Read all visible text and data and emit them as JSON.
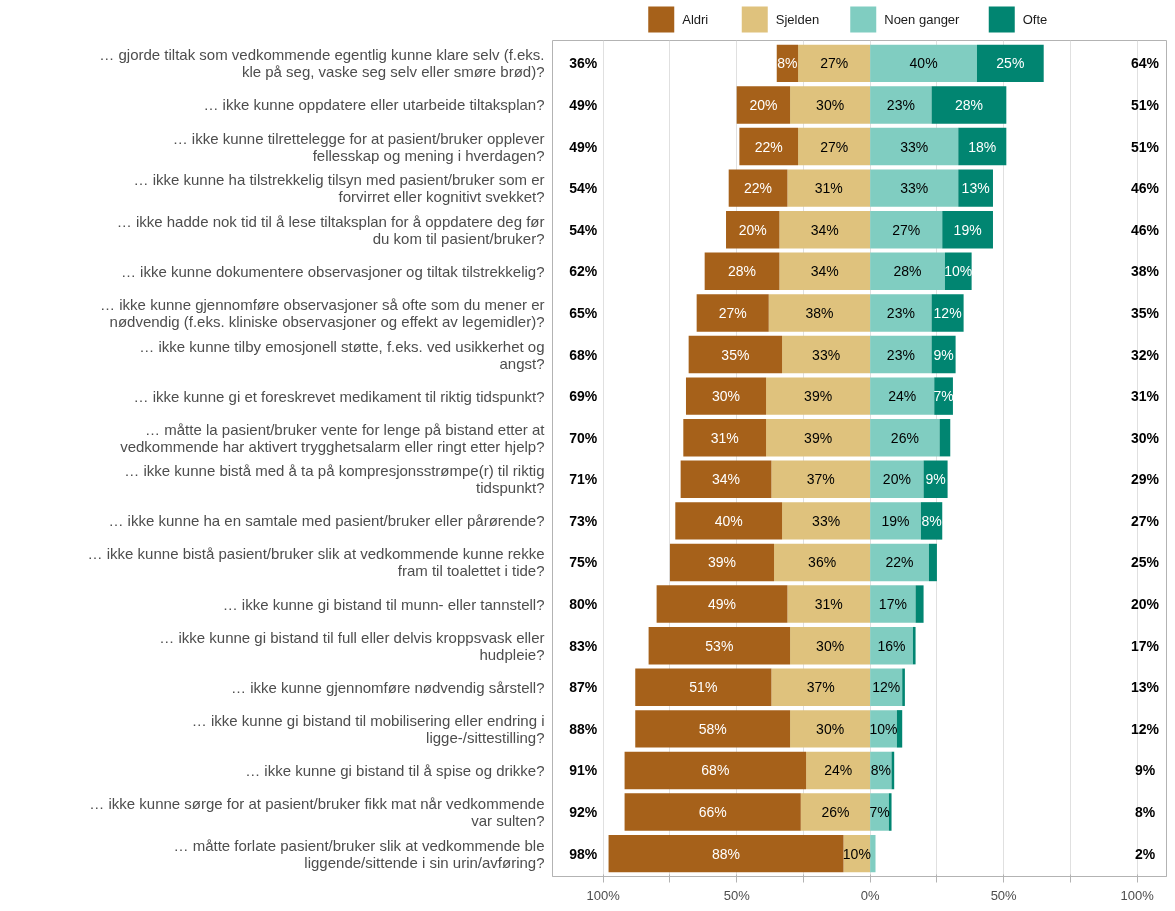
{
  "chart_data": {
    "type": "bar",
    "orientation": "horizontal",
    "categories": [
      "… gjorde tiltak som vedkommende egentlig kunne klare selv (f.eks.\nkle på seg, vaske seg selv eller smøre brød)?",
      "… ikke kunne oppdatere eller utarbeide tiltaksplan?",
      "… ikke kunne tilrettelegge for at pasient/bruker opplever\nfellesskap og mening i hverdagen?",
      "… ikke kunne ha tilstrekkelig tilsyn med pasient/bruker som er\nforvirret eller kognitivt svekket?",
      "… ikke hadde nok tid til å lese tiltaksplan for å oppdatere deg før\ndu kom til pasient/bruker?",
      "… ikke kunne dokumentere observasjoner og tiltak tilstrekkelig?",
      "… ikke kunne gjennomføre observasjoner så ofte som du mener er\nnødvendig (f.eks. kliniske observasjoner og effekt av legemidler)?",
      "… ikke kunne tilby emosjonell støtte, f.eks. ved usikkerhet og\nangst?",
      "… ikke kunne gi et foreskrevet medikament til riktig tidspunkt?",
      "… måtte la pasient/bruker vente for lenge på bistand etter at\nvedkommende har aktivert trygghetsalarm eller ringt etter hjelp?",
      "… ikke kunne bistå med å ta på kompresjonsstrømpe(r) til riktig\ntidspunkt?",
      "… ikke kunne ha en samtale med pasient/bruker eller pårørende?",
      "… ikke kunne bistå pasient/bruker slik at vedkommende kunne rekke\nfram til toalettet i tide?",
      "… ikke kunne gi bistand til munn- eller tannstell?",
      "… ikke kunne gi bistand til full eller delvis kroppsvask eller\nhudpleie?",
      "… ikke kunne gjennomføre nødvendig sårstell?",
      "… ikke kunne gi bistand til mobilisering eller endring i\nligge-/sittestilling?",
      "… ikke kunne gi bistand til å spise og drikke?",
      "… ikke kunne sørge for at pasient/bruker fikk mat når vedkommende\nvar sulten?",
      "… måtte forlate pasient/bruker slik at vedkommende ble\nliggende/sittende i sin urin/avføring?"
    ],
    "series": [
      {
        "name": "Sjelden",
        "color": "#dfc27d",
        "values": [
          27,
          30,
          27,
          31,
          34,
          34,
          38,
          33,
          39,
          39,
          37,
          33,
          36,
          31,
          30,
          37,
          30,
          24,
          26,
          10
        ],
        "base": [
          -27,
          -30,
          -27,
          -31,
          -34,
          -34,
          -38,
          -33,
          -39,
          -39,
          -37,
          -33,
          -36,
          -31,
          -30,
          -37,
          -30,
          -24,
          -26,
          -10
        ],
        "value_labels": [
          "27%",
          "30%",
          "27%",
          "31%",
          "34%",
          "34%",
          "38%",
          "33%",
          "39%",
          "39%",
          "37%",
          "33%",
          "36%",
          "31%",
          "30%",
          "37%",
          "30%",
          "24%",
          "26%",
          "10%"
        ]
      },
      {
        "name": "Aldri",
        "color": "#a6611a",
        "values": [
          8,
          20,
          22,
          22,
          20,
          28,
          27,
          35,
          30,
          31,
          34,
          40,
          39,
          49,
          53,
          51,
          58,
          68,
          66,
          88
        ],
        "base": [
          -35,
          -50,
          -49,
          -53,
          -54,
          -62,
          -65,
          -68,
          -69,
          -70,
          -71,
          -73,
          -75,
          -80,
          -83,
          -88,
          -88,
          -92,
          -92,
          -98
        ],
        "value_labels": [
          "8%",
          "20%",
          "22%",
          "22%",
          "20%",
          "28%",
          "27%",
          "35%",
          "30%",
          "31%",
          "34%",
          "40%",
          "39%",
          "49%",
          "53%",
          "51%",
          "58%",
          "68%",
          "66%",
          "88%"
        ]
      },
      {
        "name": "Noen ganger",
        "color": "#80cdc1",
        "values": [
          40,
          23,
          33,
          33,
          27,
          28,
          23,
          23,
          24,
          26,
          20,
          19,
          22,
          17,
          16,
          12,
          10,
          8,
          7,
          2
        ],
        "base": [
          0,
          0,
          0,
          0,
          0,
          0,
          0,
          0,
          0,
          0,
          0,
          0,
          0,
          0,
          0,
          0,
          0,
          0,
          0,
          0
        ],
        "value_labels": [
          "40%",
          "23%",
          "33%",
          "33%",
          "27%",
          "28%",
          "23%",
          "23%",
          "24%",
          "26%",
          "20%",
          "19%",
          "22%",
          "17%",
          "16%",
          "12%",
          "10%",
          "8%",
          "7%",
          null
        ]
      },
      {
        "name": "Ofte",
        "color": "#018571",
        "values": [
          25,
          28,
          18,
          13,
          19,
          10,
          12,
          9,
          7,
          4,
          9,
          8,
          3,
          3,
          1,
          1,
          2,
          1,
          1,
          null
        ],
        "base": [
          40,
          23,
          33,
          33,
          27,
          28,
          23,
          23,
          24,
          26,
          20,
          19,
          22,
          17,
          16,
          12,
          10,
          8,
          7,
          null
        ],
        "value_labels": [
          "25%",
          "28%",
          "18%",
          "13%",
          "19%",
          "10%",
          "12%",
          "9%",
          "7%",
          null,
          "9%",
          "8%",
          null,
          null,
          null,
          null,
          null,
          null,
          null,
          null
        ]
      }
    ],
    "totals": [
      [
        "36%",
        "64%"
      ],
      [
        "49%",
        "51%"
      ],
      [
        "49%",
        "51%"
      ],
      [
        "54%",
        "46%"
      ],
      [
        "54%",
        "46%"
      ],
      [
        "62%",
        "38%"
      ],
      [
        "65%",
        "35%"
      ],
      [
        "68%",
        "32%"
      ],
      [
        "69%",
        "31%"
      ],
      [
        "70%",
        "30%"
      ],
      [
        "71%",
        "29%"
      ],
      [
        "73%",
        "27%"
      ],
      [
        "75%",
        "25%"
      ],
      [
        "80%",
        "20%"
      ],
      [
        "83%",
        "17%"
      ],
      [
        "87%",
        "13%"
      ],
      [
        "88%",
        "12%"
      ],
      [
        "91%",
        "9%"
      ],
      [
        "92%",
        "8%"
      ],
      [
        "98%",
        "2%"
      ]
    ],
    "xlim": [
      -119,
      111
    ],
    "xticks": [
      {
        "value": -100,
        "label": "100%"
      },
      {
        "value": -75,
        "label": null
      },
      {
        "value": -50,
        "label": "50%"
      },
      {
        "value": -25,
        "label": null
      },
      {
        "value": 0,
        "label": "0%"
      },
      {
        "value": 25,
        "label": null
      },
      {
        "value": 50,
        "label": "50%"
      },
      {
        "value": 75,
        "label": null
      },
      {
        "value": 100,
        "label": "100%"
      }
    ],
    "grid": "x",
    "legend": "top"
  }
}
